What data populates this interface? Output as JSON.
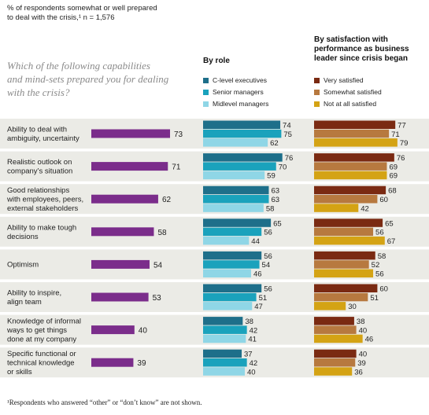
{
  "header": {
    "subtitle_line1": "% of respondents somewhat or well prepared",
    "subtitle_line2": "to deal with the crisis,¹ n = 1,576",
    "question_line1": "Which of the following capabilities",
    "question_line2": "and mind-sets prepared you for dealing",
    "question_line3": "with the crisis?"
  },
  "role_group": {
    "title": "By role",
    "legend": [
      {
        "label": "C-level executives",
        "color": "#1e6f8a"
      },
      {
        "label": "Senior managers",
        "color": "#1aa2bc"
      },
      {
        "label": "Midlevel managers",
        "color": "#8fd6e6"
      }
    ]
  },
  "satisfaction_group": {
    "title_line1": "By satisfaction with",
    "title_line2": "performance as business",
    "title_line3": "leader since crisis began",
    "legend": [
      {
        "label": "Very satisfied",
        "color": "#7a2a12"
      },
      {
        "label": "Somewhat satisfied",
        "color": "#b7793f"
      },
      {
        "label": "Not at all satisfied",
        "color": "#d4a314"
      }
    ]
  },
  "colors": {
    "total_bar": "#7b2d8b",
    "row_band": "#ebebe6"
  },
  "footnote": "¹Respondents who answered “other” or “don’t know” are not shown.",
  "chart_data": {
    "type": "bar",
    "orientation": "horizontal",
    "xlim": [
      0,
      100
    ],
    "categories": [
      [
        "Ability to deal with",
        "ambiguity, uncertainty"
      ],
      [
        "Realistic outlook on",
        "company’s situation"
      ],
      [
        "Good relationships",
        "with employees, peers,",
        "external stakeholders"
      ],
      [
        "Ability to make tough",
        "decisions"
      ],
      [
        "Optimism"
      ],
      [
        "Ability to inspire,",
        "align team"
      ],
      [
        "Knowledge of informal",
        "ways to get things",
        "done at my company"
      ],
      [
        "Specific functional or",
        "technical knowledge",
        "or skills"
      ]
    ],
    "total": [
      73,
      71,
      62,
      58,
      54,
      53,
      40,
      39
    ],
    "by_role": [
      {
        "name": "C-level executives",
        "values": [
          74,
          76,
          63,
          65,
          56,
          56,
          38,
          37
        ]
      },
      {
        "name": "Senior managers",
        "values": [
          75,
          70,
          63,
          56,
          54,
          51,
          42,
          42
        ]
      },
      {
        "name": "Midlevel managers",
        "values": [
          62,
          59,
          58,
          44,
          46,
          47,
          41,
          40
        ]
      }
    ],
    "by_satisfaction": [
      {
        "name": "Very satisfied",
        "values": [
          77,
          76,
          68,
          65,
          58,
          60,
          38,
          40
        ]
      },
      {
        "name": "Somewhat satisfied",
        "values": [
          71,
          69,
          60,
          56,
          52,
          51,
          40,
          39
        ]
      },
      {
        "name": "Not at all satisfied",
        "values": [
          79,
          69,
          42,
          67,
          56,
          30,
          46,
          36
        ]
      }
    ]
  }
}
